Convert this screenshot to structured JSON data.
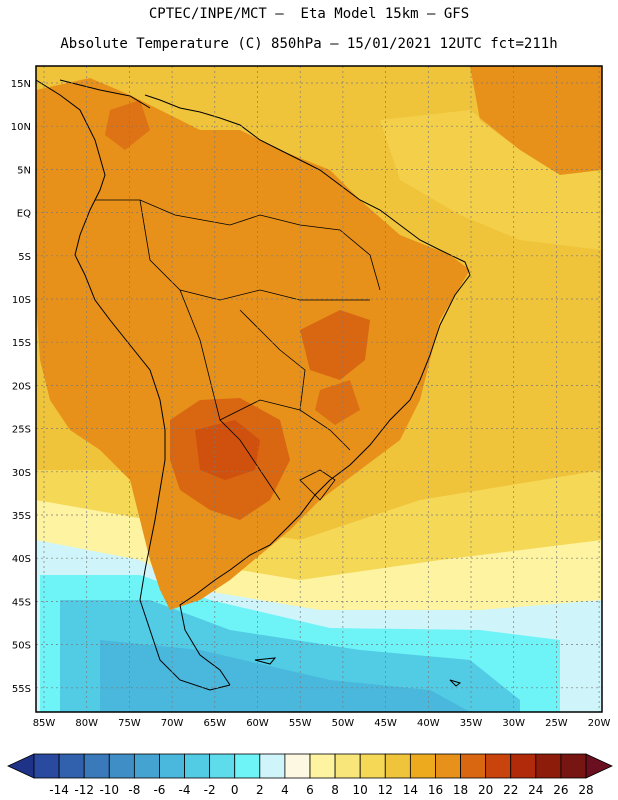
{
  "title_line1": "CPTEC/INPE/MCT –  Eta Model 15km – GFS",
  "title_line2": "Absolute Temperature (C) 850hPa – 15/01/2021 12UTC fct=211h",
  "lat_labels": [
    "15N",
    "10N",
    "5N",
    "EQ",
    "5S",
    "10S",
    "15S",
    "20S",
    "25S",
    "30S",
    "35S",
    "40S",
    "45S",
    "50S",
    "55S"
  ],
  "lon_labels": [
    "85W",
    "80W",
    "75W",
    "70W",
    "65W",
    "60W",
    "55W",
    "50W",
    "45W",
    "40W",
    "35W",
    "30W",
    "25W",
    "20W"
  ],
  "colorbar": {
    "ticks": [
      "-14",
      "-12",
      "-10",
      "-8",
      "-6",
      "-4",
      "-2",
      "0",
      "2",
      "4",
      "6",
      "8",
      "10",
      "12",
      "14",
      "16",
      "18",
      "20",
      "22",
      "24",
      "26",
      "28"
    ],
    "colors": [
      "#2a4aa0",
      "#3161ad",
      "#3a7abb",
      "#3f8fc6",
      "#45a3d1",
      "#4ab7dc",
      "#52cbe5",
      "#5fdcec",
      "#6ef3f7",
      "#cff5fb",
      "#fdf8e1",
      "#fdf3a0",
      "#f9e67a",
      "#f6d857",
      "#f0c43a",
      "#eeaa1e",
      "#e7911b",
      "#d96611",
      "#c9430c",
      "#b12a0a",
      "#8e1c0b",
      "#761512"
    ],
    "arrow_left": "#1e3288",
    "arrow_right": "#6a0f1f"
  },
  "map_colors": {
    "ocean_warm": "#f0c43a",
    "land_hot": "#e7911b",
    "land_very_hot": "#d96611",
    "ocean_mild": "#f6d857",
    "south_cool": "#fdf3a0",
    "south_cold": "#6ef3f7",
    "south_colder": "#52cbe5",
    "coast_line": "#000000",
    "grid_line": "#7a7a7a"
  }
}
